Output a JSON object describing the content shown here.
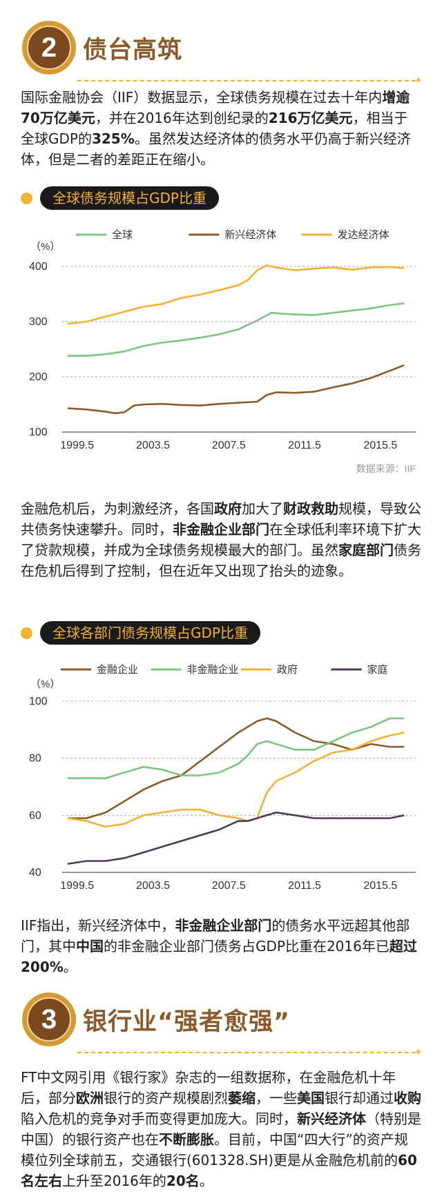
{
  "section2": {
    "number": "2",
    "title": "债台高筑"
  },
  "para1": [
    {
      "t": "国际金融协会（IIF）数据显示，全球债务规模在过去十年内"
    },
    {
      "t": "增逾70万亿美元",
      "b": true
    },
    {
      "t": "，并在2016年达到创纪录的"
    },
    {
      "t": "216万亿美元",
      "b": true
    },
    {
      "t": "，相当于全球GDP的"
    },
    {
      "t": "325%",
      "b": true
    },
    {
      "t": "。虽然发达经济体的债务水平仍高于新兴经济体，但是二者的差距正在缩小。"
    }
  ],
  "chart1_label": "全球债务规模占GDP比重",
  "chart1_source": "数据来源：IIF",
  "para2": [
    {
      "t": "金融危机后，为刺激经济，各国"
    },
    {
      "t": "政府",
      "b": true
    },
    {
      "t": "加大了"
    },
    {
      "t": "财政救助",
      "b": true
    },
    {
      "t": "规模，导致公共债务快速攀升。同时，"
    },
    {
      "t": "非金融企业部门",
      "b": true
    },
    {
      "t": "在全球低利率环境下扩大了贷款规模，并成为全球债务规模最大的部门。虽然"
    },
    {
      "t": "家庭部门",
      "b": true
    },
    {
      "t": "债务在危机后得到了控制，但在近年又出现了抬头的迹象。"
    }
  ],
  "chart2_label": "全球各部门债务规模占GDP比重",
  "para3": [
    {
      "t": "IIF指出，新兴经济体中，"
    },
    {
      "t": "非金融企业部门",
      "b": true
    },
    {
      "t": "的债务水平远超其他部门，其中"
    },
    {
      "t": "中国",
      "b": true
    },
    {
      "t": "的非金融企业部门债务占GDP比重在2016年已"
    },
    {
      "t": "超过200%",
      "b": true
    },
    {
      "t": "。"
    }
  ],
  "section3": {
    "number": "3",
    "title": "银行业“强者愈强”"
  },
  "para4": [
    {
      "t": "FT中文网引用《银行家》杂志的一组数据称，在金融危机十年后，部分"
    },
    {
      "t": "欧洲",
      "b": true
    },
    {
      "t": "银行的资产规模剧烈"
    },
    {
      "t": "萎缩",
      "b": true
    },
    {
      "t": "，一些"
    },
    {
      "t": "美国",
      "b": true
    },
    {
      "t": "银行却通过"
    },
    {
      "t": "收购",
      "b": true
    },
    {
      "t": "陷入危机的竞争对手而变得更加庞大。同时，"
    },
    {
      "t": "新兴经济体",
      "b": true
    },
    {
      "t": "（特别是中国）的银行资产也在"
    },
    {
      "t": "不断膨胀",
      "b": true
    },
    {
      "t": "。目前，中国“四大行”的资产规模位列全球前五，交通银行(601328.SH)更是从金融危机前的"
    },
    {
      "t": "60名左右",
      "b": true
    },
    {
      "t": "上升至2016年的"
    },
    {
      "t": "20名",
      "b": true
    },
    {
      "t": "。"
    }
  ],
  "chart_data": [
    {
      "type": "line",
      "title": "全球债务规模占GDP比重",
      "ylabel": "（%）",
      "ylim": [
        100,
        400
      ],
      "yticks": [
        "100",
        "200",
        "300",
        "400"
      ],
      "xticks": [
        "1999.5",
        "2003.5",
        "2007.5",
        "2011.5",
        "2015.5"
      ],
      "xrange": [
        1999.0,
        2017.0
      ],
      "grid": true,
      "legend_position": "top",
      "series": [
        {
          "name": "全球",
          "color": "#7cc47f",
          "x": [
            1999.0,
            2000.0,
            2001.0,
            2002.0,
            2003.0,
            2004.0,
            2005.0,
            2006.0,
            2007.0,
            2008.0,
            2009.0,
            2009.75,
            2010.5,
            2011.0,
            2012.0,
            2013.0,
            2014.0,
            2015.0,
            2016.0,
            2016.75
          ],
          "y": [
            238,
            238,
            241,
            246,
            256,
            262,
            266,
            271,
            277,
            286,
            302,
            316,
            314,
            313,
            312,
            316,
            320,
            324,
            330,
            333
          ]
        },
        {
          "name": "新兴经济体",
          "color": "#8a5a2a",
          "x": [
            1999.0,
            2000.0,
            2001.0,
            2001.5,
            2002.0,
            2002.5,
            2003.0,
            2004.0,
            2005.0,
            2006.0,
            2007.0,
            2008.0,
            2009.0,
            2009.5,
            2010.0,
            2011.0,
            2012.0,
            2013.0,
            2014.0,
            2015.0,
            2016.0,
            2016.75
          ],
          "y": [
            143,
            141,
            137,
            134,
            136,
            148,
            150,
            151,
            149,
            148,
            151,
            153,
            155,
            167,
            172,
            171,
            173,
            181,
            188,
            198,
            211,
            221
          ]
        },
        {
          "name": "发达经济体",
          "color": "#f3b133",
          "x": [
            1999.0,
            2000.0,
            2001.0,
            2002.0,
            2003.0,
            2004.0,
            2005.0,
            2006.0,
            2007.0,
            2008.0,
            2008.5,
            2009.0,
            2009.5,
            2010.0,
            2011.0,
            2012.0,
            2013.0,
            2014.0,
            2015.0,
            2016.0,
            2016.75
          ],
          "y": [
            296,
            300,
            309,
            318,
            327,
            332,
            343,
            349,
            357,
            366,
            375,
            393,
            402,
            398,
            393,
            396,
            398,
            394,
            398,
            399,
            397
          ]
        }
      ],
      "source": "数据来源：IIF"
    },
    {
      "type": "line",
      "title": "全球各部门债务规模占GDP比重",
      "ylabel": "（%）",
      "ylim": [
        40,
        100
      ],
      "yticks": [
        "40",
        "60",
        "80",
        "100"
      ],
      "xticks": [
        "1999.5",
        "2003.5",
        "2007.5",
        "2011.5",
        "2015.5"
      ],
      "xrange": [
        1999.0,
        2017.0
      ],
      "grid": true,
      "legend_position": "top",
      "series": [
        {
          "name": "金融企业",
          "color": "#8a5a2a",
          "x": [
            1999.0,
            2000.0,
            2001.0,
            2002.0,
            2003.0,
            2004.0,
            2005.0,
            2006.0,
            2007.0,
            2008.0,
            2008.5,
            2009.0,
            2009.5,
            2010.0,
            2011.0,
            2012.0,
            2013.0,
            2014.0,
            2015.0,
            2016.0,
            2016.75
          ],
          "y": [
            59,
            59,
            61,
            65,
            69,
            72,
            74,
            79,
            84,
            89,
            91,
            93,
            94,
            93,
            89,
            86,
            85,
            83,
            85,
            84,
            84
          ]
        },
        {
          "name": "非金融企业",
          "color": "#7cc47f",
          "x": [
            1999.0,
            2000.0,
            2001.0,
            2002.0,
            2003.0,
            2004.0,
            2005.0,
            2006.0,
            2007.0,
            2008.0,
            2008.5,
            2009.0,
            2009.5,
            2010.0,
            2011.0,
            2012.0,
            2013.0,
            2014.0,
            2015.0,
            2016.0,
            2016.75
          ],
          "y": [
            73,
            73,
            73,
            75,
            77,
            76,
            74,
            74,
            75,
            78,
            81,
            85,
            86,
            85,
            83,
            83,
            86,
            89,
            91,
            94,
            94
          ]
        },
        {
          "name": "政府",
          "color": "#f3b133",
          "x": [
            1999.0,
            2000.0,
            2001.0,
            2002.0,
            2003.0,
            2004.0,
            2005.0,
            2006.0,
            2007.0,
            2008.0,
            2008.5,
            2009.0,
            2009.5,
            2010.0,
            2011.0,
            2012.0,
            2013.0,
            2014.0,
            2015.0,
            2016.0,
            2016.75
          ],
          "y": [
            59,
            58,
            56,
            57,
            60,
            61,
            62,
            62,
            60,
            59,
            58,
            59,
            68,
            72,
            75,
            79,
            82,
            83,
            86,
            88,
            89
          ]
        },
        {
          "name": "家庭",
          "color": "#4a3a55",
          "x": [
            1999.0,
            2000.0,
            2001.0,
            2002.0,
            2003.0,
            2004.0,
            2005.0,
            2006.0,
            2007.0,
            2008.0,
            2008.5,
            2009.0,
            2009.5,
            2010.0,
            2011.0,
            2012.0,
            2013.0,
            2014.0,
            2015.0,
            2016.0,
            2016.75
          ],
          "y": [
            43,
            44,
            44,
            45,
            47,
            49,
            51,
            53,
            55,
            58,
            58,
            59,
            60,
            61,
            60,
            59,
            59,
            59,
            59,
            59,
            60
          ]
        }
      ]
    }
  ]
}
